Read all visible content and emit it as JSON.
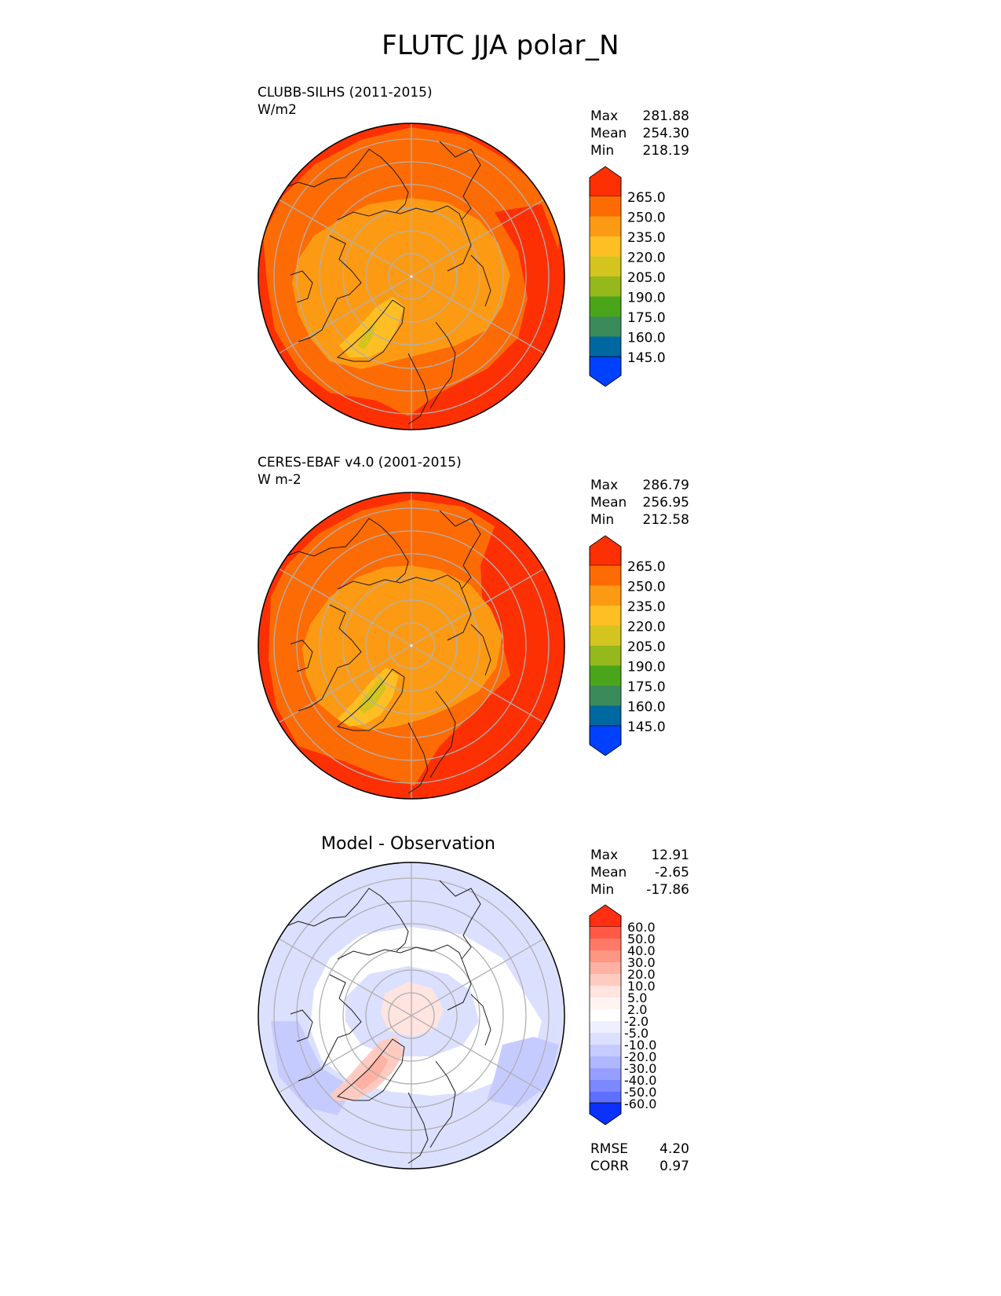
{
  "figure": {
    "title": "FLUTC JJA polar_N"
  },
  "panels": [
    {
      "id": "model",
      "label_line1": "CLUBB-SILHS (2011-2015)",
      "label_line2": "W/m2",
      "stats": {
        "max_label": "Max",
        "max": "281.88",
        "mean_label": "Mean",
        "mean": "254.30",
        "min_label": "Min",
        "min": "218.19"
      },
      "colorbar_ticks": [
        "265.0",
        "250.0",
        "235.0",
        "220.0",
        "205.0",
        "190.0",
        "175.0",
        "160.0",
        "145.0"
      ]
    },
    {
      "id": "obs",
      "label_line1": "CERES-EBAF v4.0 (2001-2015)",
      "label_line2": "W m-2",
      "stats": {
        "max_label": "Max",
        "max": "286.79",
        "mean_label": "Mean",
        "mean": "256.95",
        "min_label": "Min",
        "min": "212.58"
      },
      "colorbar_ticks": [
        "265.0",
        "250.0",
        "235.0",
        "220.0",
        "205.0",
        "190.0",
        "175.0",
        "160.0",
        "145.0"
      ]
    },
    {
      "id": "diff",
      "title": "Model - Observation",
      "stats": {
        "max_label": "Max",
        "max": "12.91",
        "mean_label": "Mean",
        "mean": "-2.65",
        "min_label": "Min",
        "min": "-17.86"
      },
      "colorbar_ticks": [
        "60.0",
        "50.0",
        "40.0",
        "30.0",
        "20.0",
        "10.0",
        "5.0",
        "2.0",
        "-2.0",
        "-5.0",
        "-10.0",
        "-20.0",
        "-30.0",
        "-40.0",
        "-50.0",
        "-60.0"
      ],
      "metrics": {
        "rmse_label": "RMSE",
        "rmse": "4.20",
        "corr_label": "CORR",
        "corr": "0.97"
      }
    }
  ],
  "colors": {
    "field_levels": [
      "#0041ff",
      "#0068a0",
      "#3a8a5a",
      "#4aa51a",
      "#95b81c",
      "#d3c420",
      "#fdbf24",
      "#fd9a14",
      "#fd6b04",
      "#fd3004"
    ],
    "diff_levels": [
      "#0b31ff",
      "#3a52ff",
      "#5d70ff",
      "#7b88ff",
      "#969fff",
      "#b0b6ff",
      "#c6cbff",
      "#dce0ff",
      "#ffffff",
      "#ffe4df",
      "#ffcbc1",
      "#ffb1a3",
      "#ff9684",
      "#ff7a66",
      "#ff5a46",
      "#ff2f14"
    ],
    "graticule": "#b0b0b0",
    "coast": "#1a1a1a"
  }
}
